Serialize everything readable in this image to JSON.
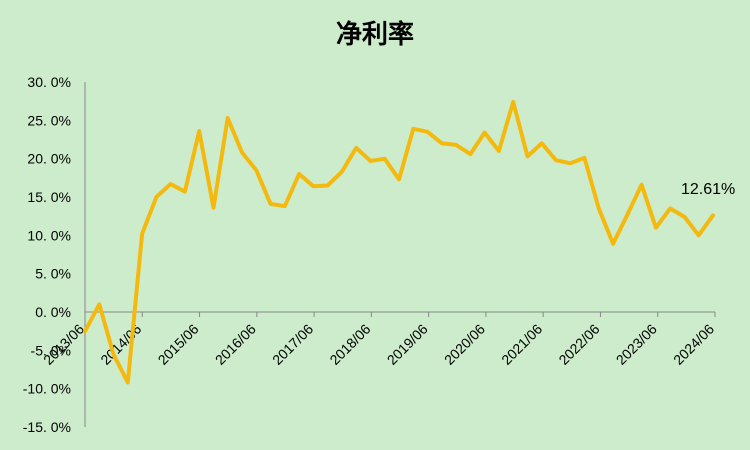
{
  "chart_data": {
    "type": "line",
    "title": "净利率",
    "xlabel": "",
    "ylabel": "",
    "ylim": [
      -15,
      30
    ],
    "y_ticks": [
      30,
      25,
      20,
      15,
      10,
      5,
      0,
      -5,
      -10,
      -15
    ],
    "y_tick_labels": [
      "30. 0%",
      "25. 0%",
      "20. 0%",
      "15. 0%",
      "10. 0%",
      "5. 0%",
      "0. 0%",
      "-5. 0%",
      "-10. 0%",
      "-15. 0%"
    ],
    "x_tick_labels": [
      "2013/06",
      "2014/06",
      "2015/06",
      "2016/06",
      "2017/06",
      "2018/06",
      "2019/06",
      "2020/06",
      "2021/06",
      "2022/06",
      "2023/06",
      "2024/06"
    ],
    "line_color": "#f4b90f",
    "grid": false,
    "series": [
      {
        "values": [
          -2.5,
          1.0,
          -5.5,
          -9.2,
          10.2,
          15.0,
          16.7,
          15.7,
          23.6,
          13.6,
          25.3,
          20.8,
          18.5,
          14.1,
          13.8,
          18.0,
          16.4,
          16.5,
          18.3,
          21.4,
          19.7,
          20.0,
          17.3,
          23.9,
          23.5,
          22.0,
          21.8,
          20.6,
          23.4,
          21.0,
          27.4,
          20.3,
          22.0,
          19.8,
          19.4,
          20.1,
          13.5,
          8.9,
          12.7,
          16.6,
          11.0,
          13.5,
          12.4,
          10.0,
          12.61
        ]
      }
    ],
    "annotation": "12.61%"
  }
}
